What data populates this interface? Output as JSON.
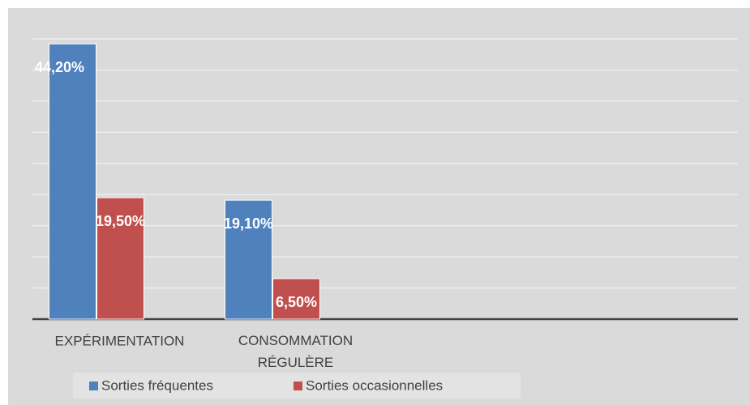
{
  "chart_data": {
    "type": "bar",
    "categories": [
      "EXPÉRIMENTATION",
      "CONSOMMATION RÉGULÈRE",
      null,
      null
    ],
    "series": [
      {
        "name": "Sorties fréquentes",
        "color": "#4f81bd",
        "values": [
          44.2,
          19.1,
          null,
          null
        ],
        "value_labels": [
          "44,20%",
          "19,10%",
          null,
          null
        ]
      },
      {
        "name": "Sorties occasionnelles",
        "color": "#c0504d",
        "values": [
          19.5,
          6.5,
          null,
          null
        ],
        "value_labels": [
          "19,50%",
          "6,50%",
          null,
          null
        ]
      }
    ],
    "ylim": [
      0,
      45
    ],
    "yticks": [
      0,
      5,
      10,
      15,
      20,
      25,
      30,
      35,
      40,
      45
    ],
    "grid": true,
    "legend": "bottom"
  }
}
